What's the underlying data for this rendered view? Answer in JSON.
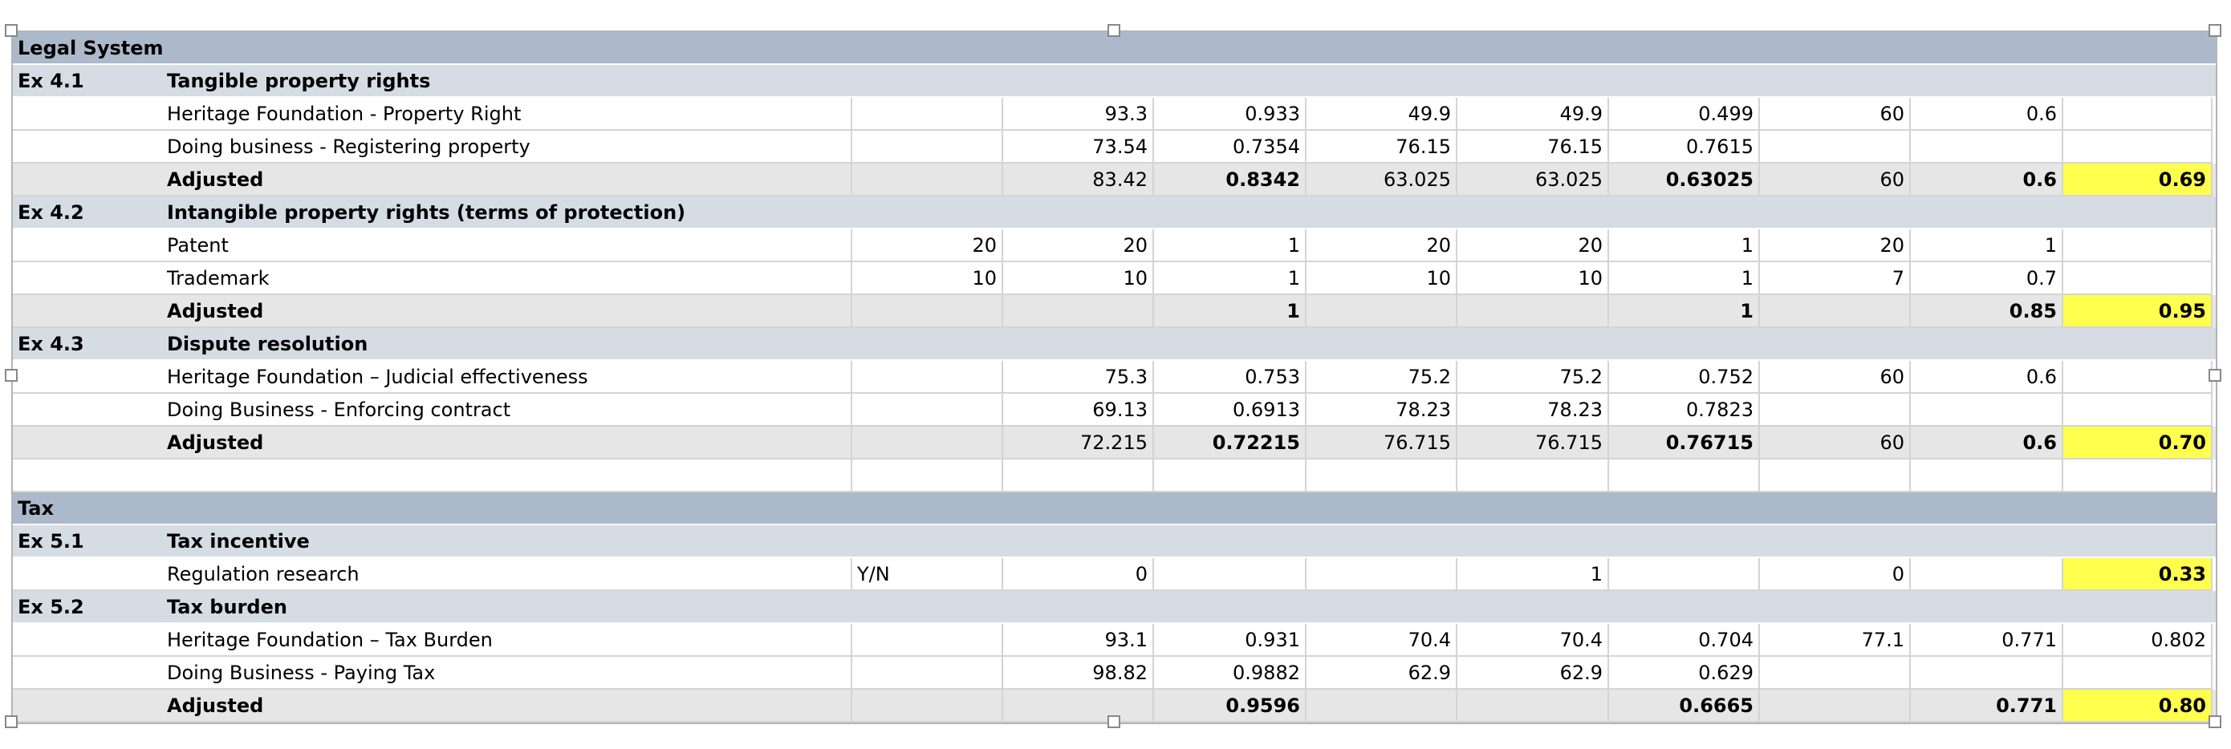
{
  "table": {
    "rows": [
      {
        "kind": "section",
        "cells": [
          "Legal System"
        ]
      },
      {
        "kind": "group",
        "cells": [
          "Ex 4.1",
          "Tangible property rights"
        ]
      },
      {
        "kind": "item",
        "cells": [
          null,
          "Heritage Foundation - Property Right",
          null,
          "93.3",
          "0.933",
          "49.9",
          "49.9",
          "0.499",
          "60",
          "0.6",
          null
        ]
      },
      {
        "kind": "item",
        "cells": [
          null,
          "Doing business - Registering property",
          null,
          "73.54",
          "0.7354",
          "76.15",
          "76.15",
          "0.7615",
          null,
          null,
          null
        ]
      },
      {
        "kind": "adjusted",
        "highlight": true,
        "cells": [
          null,
          "Adjusted",
          null,
          "83.42",
          "0.8342",
          "63.025",
          "63.025",
          "0.63025",
          "60",
          "0.6",
          "0.69"
        ]
      },
      {
        "kind": "group",
        "cells": [
          "Ex 4.2",
          "Intangible property rights (terms of protection)"
        ]
      },
      {
        "kind": "item",
        "cells": [
          null,
          "Patent",
          "20",
          "20",
          "1",
          "20",
          "20",
          "1",
          "20",
          "1",
          null
        ]
      },
      {
        "kind": "item",
        "cells": [
          null,
          "Trademark",
          "10",
          "10",
          "1",
          "10",
          "10",
          "1",
          "7",
          "0.7",
          null
        ]
      },
      {
        "kind": "adjusted",
        "highlight": true,
        "cells": [
          null,
          "Adjusted",
          null,
          null,
          "1",
          null,
          null,
          "1",
          null,
          "0.85",
          "0.95"
        ]
      },
      {
        "kind": "group",
        "cells": [
          "Ex 4.3",
          "Dispute resolution"
        ]
      },
      {
        "kind": "item",
        "cells": [
          null,
          "Heritage Foundation – Judicial effectiveness",
          null,
          "75.3",
          "0.753",
          "75.2",
          "75.2",
          "0.752",
          "60",
          "0.6",
          null
        ]
      },
      {
        "kind": "item",
        "cells": [
          null,
          "Doing Business - Enforcing contract",
          null,
          "69.13",
          "0.6913",
          "78.23",
          "78.23",
          "0.7823",
          null,
          null,
          null
        ]
      },
      {
        "kind": "adjusted",
        "highlight": true,
        "cells": [
          null,
          "Adjusted",
          null,
          "72.215",
          "0.72215",
          "76.715",
          "76.715",
          "0.76715",
          "60",
          "0.6",
          "0.70"
        ]
      },
      {
        "kind": "blank",
        "cells": []
      },
      {
        "kind": "section",
        "cells": [
          "Tax"
        ]
      },
      {
        "kind": "group",
        "cells": [
          "Ex 5.1",
          "Tax incentive"
        ]
      },
      {
        "kind": "item",
        "highlight": true,
        "cells": [
          null,
          "Regulation research",
          "Y/N",
          "0",
          null,
          null,
          "1",
          null,
          "0",
          null,
          "0.33"
        ]
      },
      {
        "kind": "group",
        "cells": [
          "Ex 5.2",
          "Tax burden"
        ]
      },
      {
        "kind": "item",
        "cells": [
          null,
          "Heritage Foundation – Tax Burden",
          null,
          "93.1",
          "0.931",
          "70.4",
          "70.4",
          "0.704",
          "77.1",
          "0.771",
          "0.802"
        ]
      },
      {
        "kind": "item",
        "cells": [
          null,
          "Doing Business - Paying Tax",
          null,
          "98.82",
          "0.9882",
          "62.9",
          "62.9",
          "0.629",
          null,
          null,
          null
        ]
      },
      {
        "kind": "adjusted",
        "highlight": true,
        "cells": [
          null,
          "Adjusted",
          null,
          null,
          "0.9596",
          null,
          null,
          "0.6665",
          null,
          "0.771",
          "0.80"
        ]
      }
    ]
  }
}
